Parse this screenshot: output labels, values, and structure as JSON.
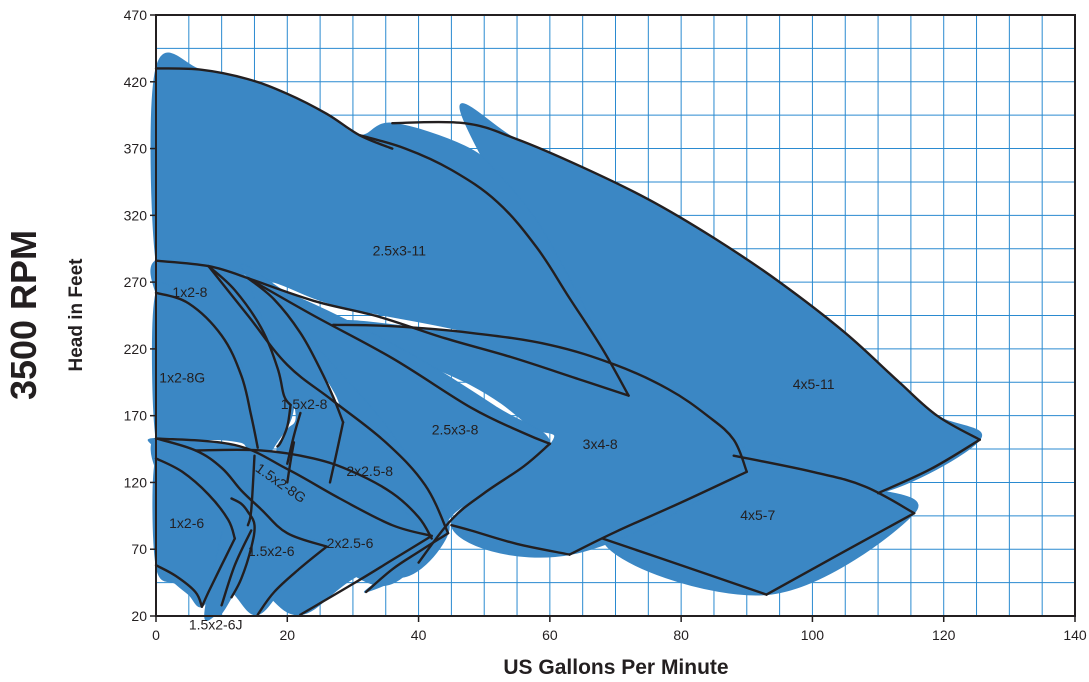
{
  "chart_data": {
    "type": "area",
    "title": "3500 RPM",
    "xlabel": "US Gallons Per Minute",
    "ylabel": "Head in Feet",
    "xlim": [
      0,
      140
    ],
    "ylim": [
      20,
      470
    ],
    "xticks": [
      0,
      20,
      40,
      60,
      80,
      100,
      120,
      140
    ],
    "yticks": [
      20,
      70,
      120,
      170,
      220,
      270,
      320,
      370,
      420,
      470
    ],
    "grid": true,
    "fill_color": "#3b87c4",
    "grid_color": "#2a8ad0",
    "line_color": "#231f20",
    "series": [
      {
        "name": "4x5-11",
        "label_at": [
          97,
          190
        ],
        "x": [
          47,
          55,
          65,
          75,
          85,
          95,
          105,
          113,
          119,
          125.5,
          110,
          100,
          88,
          72
        ],
        "y": [
          390,
          377,
          356,
          332,
          303,
          270,
          232,
          196,
          170,
          152,
          112,
          128,
          140,
          185
        ]
      },
      {
        "name": "2.5x3-11",
        "label_at": [
          33,
          290
        ],
        "x": [
          0,
          7,
          14,
          20,
          26,
          31,
          36,
          47,
          52,
          58,
          63,
          68,
          72,
          62,
          48,
          28,
          18,
          10,
          4,
          0
        ],
        "y": [
          430,
          429,
          422,
          411,
          396,
          380,
          389,
          372,
          352,
          316,
          273,
          225,
          185,
          208,
          232,
          252,
          270,
          280,
          286,
          286
        ]
      },
      {
        "name": "4x5-7",
        "label_at": [
          89,
          92
        ],
        "x": [
          88,
          100,
          108,
          115.5,
          93,
          68
        ],
        "y": [
          140,
          128,
          117,
          97,
          36,
          78
        ]
      },
      {
        "name": "3x4-8",
        "label_at": [
          65,
          145
        ],
        "x": [
          28,
          40,
          50,
          60,
          70,
          80,
          88,
          90,
          63,
          45,
          60,
          57,
          48
        ],
        "y": [
          238,
          236,
          231,
          223,
          208,
          186,
          152,
          128,
          66,
          88,
          148,
          162,
          193
        ]
      },
      {
        "name": "2.5x3-8",
        "label_at": [
          42,
          156
        ],
        "x": [
          14,
          20,
          28,
          40,
          52,
          60,
          52,
          45,
          41,
          32,
          35,
          40,
          41
        ],
        "y": [
          273,
          262,
          244,
          213,
          176,
          149,
          118,
          95,
          60,
          38,
          52,
          82,
          108
        ]
      },
      {
        "name": "2x2.5-8",
        "label_at": [
          29,
          125
        ],
        "x": [
          14,
          20,
          27,
          35,
          41,
          44.5,
          36,
          26.5,
          28.5,
          25
        ],
        "y": [
          273,
          245,
          208,
          163,
          118,
          82,
          50,
          120,
          165,
          205
        ]
      },
      {
        "name": "1x2-8",
        "label_at": [
          2.5,
          259
        ],
        "x": [
          0,
          8,
          14,
          18,
          21,
          18,
          15.5,
          13.5,
          10,
          6,
          3,
          0
        ],
        "y": [
          286,
          282,
          273,
          237,
          180,
          147,
          135,
          149,
          178,
          222,
          245,
          262
        ]
      },
      {
        "name": "1x2-8G",
        "label_at": [
          0.5,
          195
        ],
        "x": [
          0,
          5,
          10,
          14,
          15.5,
          13,
          10,
          6,
          3,
          0
        ],
        "y": [
          262,
          254,
          230,
          195,
          146,
          150,
          152,
          152,
          153,
          153
        ]
      },
      {
        "name": "1.5x2-8",
        "label_at": [
          19,
          175
        ],
        "x": [
          14,
          18,
          22,
          25,
          27,
          28.5,
          26.5,
          22,
          19,
          18.5,
          20,
          21
        ],
        "y": [
          273,
          257,
          232,
          205,
          184,
          165,
          120,
          131,
          137,
          147,
          159,
          180
        ]
      },
      {
        "name": "1.5x2-8G",
        "label_at": [
          15,
          129
        ],
        "x": [
          6,
          16,
          26,
          33,
          38,
          42,
          35,
          26,
          20,
          14,
          10
        ],
        "y": [
          144,
          144,
          136,
          120,
          98,
          78,
          43,
          66,
          100,
          126,
          138
        ]
      },
      {
        "name": "2x2.5-6",
        "label_at": [
          26,
          71
        ],
        "x": [
          0,
          12,
          20,
          28,
          36,
          42,
          30,
          22,
          16,
          10,
          5,
          0
        ],
        "y": [
          153,
          148,
          130,
          108,
          88,
          80,
          48,
          21,
          41,
          73,
          118,
          145
        ]
      },
      {
        "name": "1.5x2-6",
        "label_at": [
          14,
          65
        ],
        "x": [
          0,
          6,
          10,
          13,
          16,
          20,
          26,
          20,
          15.5,
          12,
          9,
          5,
          0
        ],
        "y": [
          153,
          144,
          131,
          114,
          100,
          82,
          72,
          45,
          21,
          36,
          55,
          92,
          130
        ]
      },
      {
        "name": "1x2-6",
        "label_at": [
          2,
          86
        ],
        "x": [
          0,
          4,
          8,
          11.5,
          12,
          9.5,
          7,
          5,
          3,
          0
        ],
        "y": [
          138,
          128,
          111,
          82,
          62,
          46,
          27,
          36,
          44,
          58
        ]
      },
      {
        "name": "1.5x2-6J",
        "label_at": [
          5,
          10
        ],
        "x": [
          11.5,
          13,
          14,
          15,
          14.5,
          13,
          11.5,
          10,
          9,
          7.5
        ],
        "y": [
          108,
          104,
          98,
          88,
          71,
          48,
          34,
          22,
          20,
          25
        ]
      }
    ],
    "boundary_curves": [
      {
        "x": [
          0,
          7,
          14,
          20,
          26,
          31,
          36
        ],
        "y": [
          430,
          429,
          422,
          411,
          396,
          380,
          370
        ]
      },
      {
        "x": [
          36,
          47,
          55,
          65,
          75,
          85,
          95,
          105,
          113,
          119,
          125.5
        ],
        "y": [
          389,
          389,
          377,
          356,
          332,
          303,
          270,
          232,
          196,
          170,
          152
        ]
      },
      {
        "x": [
          125.5,
          118,
          110
        ],
        "y": [
          152,
          130,
          112
        ]
      },
      {
        "x": [
          31,
          38,
          45,
          52,
          58,
          63,
          68,
          72
        ],
        "y": [
          380,
          370,
          354,
          330,
          296,
          258,
          220,
          185
        ]
      },
      {
        "x": [
          0,
          8,
          14
        ],
        "y": [
          286,
          282,
          273
        ]
      },
      {
        "x": [
          14,
          24,
          34,
          44,
          54,
          64,
          72
        ],
        "y": [
          273,
          256,
          244,
          228,
          214,
          198,
          185
        ]
      },
      {
        "x": [
          27,
          36,
          48,
          60,
          70,
          78,
          84,
          88,
          90
        ],
        "y": [
          238,
          237,
          232,
          223,
          208,
          190,
          170,
          152,
          128
        ]
      },
      {
        "x": [
          88,
          100,
          108,
          115.5
        ],
        "y": [
          140,
          128,
          117,
          97
        ]
      },
      {
        "x": [
          115.5,
          104,
          93
        ],
        "y": [
          97,
          66,
          36
        ]
      },
      {
        "x": [
          93,
          80,
          68
        ],
        "y": [
          36,
          58,
          78
        ]
      },
      {
        "x": [
          90,
          80,
          70,
          63
        ],
        "y": [
          128,
          105,
          83,
          66
        ]
      },
      {
        "x": [
          63,
          55,
          48,
          45
        ],
        "y": [
          66,
          74,
          84,
          88
        ]
      },
      {
        "x": [
          14,
          24,
          36,
          48,
          56,
          60
        ],
        "y": [
          273,
          245,
          213,
          176,
          157,
          149
        ]
      },
      {
        "x": [
          60,
          56,
          50,
          45,
          40
        ],
        "y": [
          149,
          132,
          112,
          92,
          60
        ]
      },
      {
        "x": [
          8,
          14,
          20,
          27,
          35,
          41,
          44.5
        ],
        "y": [
          282,
          245,
          208,
          181,
          150,
          118,
          82
        ]
      },
      {
        "x": [
          44.5,
          40,
          36,
          32
        ],
        "y": [
          82,
          68,
          55,
          38
        ]
      },
      {
        "x": [
          0,
          5,
          10,
          13,
          14.5,
          15.5
        ],
        "y": [
          262,
          254,
          230,
          200,
          170,
          146
        ]
      },
      {
        "x": [
          8,
          12,
          16,
          18.5,
          19.5,
          20.5
        ],
        "y": [
          282,
          264,
          236,
          206,
          185,
          178
        ]
      },
      {
        "x": [
          20.5,
          20,
          19,
          18.5
        ],
        "y": [
          178,
          162,
          150,
          147
        ]
      },
      {
        "x": [
          14,
          18,
          22,
          25,
          27,
          28.5
        ],
        "y": [
          273,
          257,
          232,
          205,
          184,
          165
        ]
      },
      {
        "x": [
          28.5,
          27.5,
          26.5
        ],
        "y": [
          165,
          142,
          120
        ]
      },
      {
        "x": [
          22,
          21,
          20
        ],
        "y": [
          172,
          155,
          134
        ]
      },
      {
        "x": [
          6,
          16,
          24,
          30,
          36,
          40,
          42
        ],
        "y": [
          144,
          144,
          138,
          128,
          112,
          94,
          78
        ]
      },
      {
        "x": [
          0,
          12,
          20,
          28,
          36,
          42
        ],
        "y": [
          153,
          148,
          130,
          108,
          88,
          80
        ]
      },
      {
        "x": [
          0,
          6,
          10,
          13,
          16,
          20,
          26
        ],
        "y": [
          153,
          144,
          131,
          114,
          100,
          82,
          72
        ]
      },
      {
        "x": [
          26,
          22,
          18,
          15.5
        ],
        "y": [
          72,
          56,
          38,
          21
        ]
      },
      {
        "x": [
          42,
          36,
          30,
          22
        ],
        "y": [
          80,
          62,
          44,
          21
        ]
      },
      {
        "x": [
          0,
          4,
          8,
          11,
          12
        ],
        "y": [
          138,
          128,
          111,
          92,
          78
        ]
      },
      {
        "x": [
          12,
          10,
          8,
          7
        ],
        "y": [
          78,
          58,
          38,
          27
        ]
      },
      {
        "x": [
          0,
          3,
          6,
          7
        ],
        "y": [
          58,
          50,
          38,
          27
        ]
      },
      {
        "x": [
          11.5,
          13,
          14,
          15,
          14.5,
          13,
          11.5
        ],
        "y": [
          108,
          104,
          98,
          88,
          71,
          48,
          34
        ]
      },
      {
        "x": [
          14.5,
          12,
          10
        ],
        "y": [
          84,
          58,
          28
        ]
      },
      {
        "x": [
          14,
          14.5,
          15
        ],
        "y": [
          88,
          99,
          140
        ]
      },
      {
        "x": [
          20,
          20.5,
          21
        ],
        "y": [
          120,
          136,
          150
        ]
      }
    ]
  }
}
